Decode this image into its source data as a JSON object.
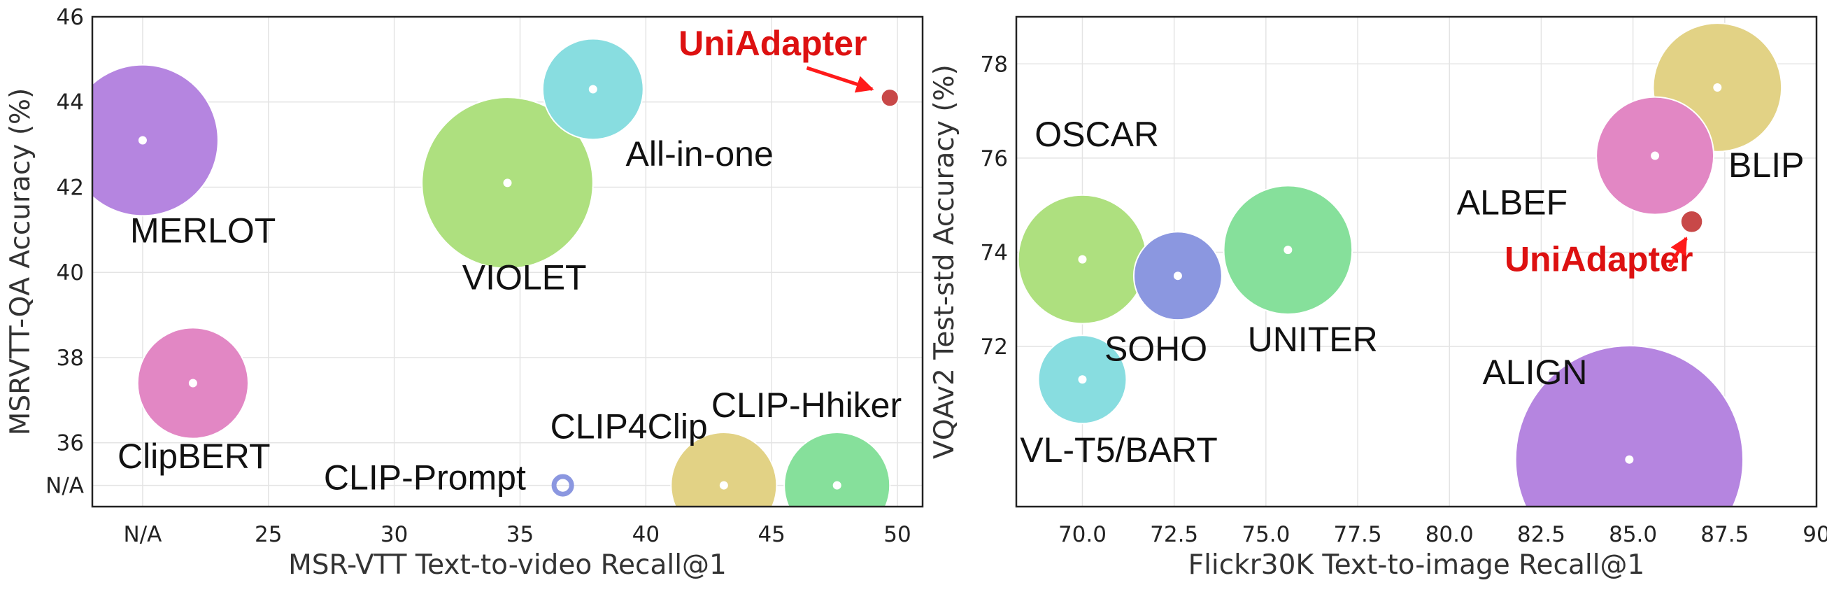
{
  "chart_data": [
    {
      "type": "scatter",
      "xlabel": "MSR-VTT Text-to-video Recall@1",
      "ylabel": "MSRVTT-QA Accuracy (%)",
      "xlim": [
        18,
        51
      ],
      "ylim": [
        34.5,
        46
      ],
      "xticks": [
        {
          "v": 20,
          "label": "N/A"
        },
        {
          "v": 25,
          "label": "25"
        },
        {
          "v": 30,
          "label": "30"
        },
        {
          "v": 35,
          "label": "35"
        },
        {
          "v": 40,
          "label": "40"
        },
        {
          "v": 45,
          "label": "45"
        },
        {
          "v": 50,
          "label": "50"
        }
      ],
      "yticks": [
        {
          "v": 35,
          "label": "N/A"
        },
        {
          "v": 36,
          "label": "36"
        },
        {
          "v": 38,
          "label": "38"
        },
        {
          "v": 40,
          "label": "40"
        },
        {
          "v": 42,
          "label": "42"
        },
        {
          "v": 44,
          "label": "44"
        },
        {
          "v": 46,
          "label": "46"
        }
      ],
      "grid": true,
      "points": [
        {
          "label": "MERLOT",
          "x": 20,
          "y": 43.1,
          "size": 3.0,
          "color": "#b585e0",
          "lx": 19.5,
          "ly": 40.7
        },
        {
          "label": "VIOLET",
          "x": 34.5,
          "y": 42.1,
          "size": 3.4,
          "color": "#aee07f",
          "lx": 32.7,
          "ly": 39.6
        },
        {
          "label": "All-in-one",
          "x": 37.9,
          "y": 44.3,
          "size": 2.0,
          "color": "#88dde0",
          "lx": 39.2,
          "ly": 42.5
        },
        {
          "label": "ClipBERT",
          "x": 22,
          "y": 37.4,
          "size": 2.2,
          "color": "#e287c4",
          "lx": 19.0,
          "ly": 35.4
        },
        {
          "label": "CLIP4Clip",
          "x": 43.1,
          "y": 35.0,
          "size": 2.1,
          "color": "#e2d285",
          "lx": 36.2,
          "ly": 36.1
        },
        {
          "label": "CLIP-Hhiker",
          "x": 47.6,
          "y": 35.0,
          "size": 2.1,
          "color": "#86e09b",
          "lx": 42.6,
          "ly": 36.6
        },
        {
          "label": "CLIP-Prompt",
          "x": 36.7,
          "y": 35.0,
          "size": 0.35,
          "color": "#8b97e0",
          "ring": true,
          "lx": 27.2,
          "ly": 34.9
        },
        {
          "label": "UniAdapter",
          "x": 49.7,
          "y": 44.1,
          "size": 0.35,
          "color": "#c84848",
          "highlight": true,
          "lx": 41.3,
          "ly": 45.1,
          "arrow": [
            46.4,
            44.8,
            49.0,
            44.3
          ]
        }
      ]
    },
    {
      "type": "scatter",
      "xlabel": "Flickr30K Text-to-image Recall@1",
      "ylabel": "VQAv2 Test-std Accuracy (%)",
      "xlim": [
        68.2,
        90
      ],
      "ylim": [
        68.6,
        79
      ],
      "xticks": [
        {
          "v": 70,
          "label": "70.0"
        },
        {
          "v": 72.5,
          "label": "72.5"
        },
        {
          "v": 75,
          "label": "75.0"
        },
        {
          "v": 77.5,
          "label": "77.5"
        },
        {
          "v": 80,
          "label": "80.0"
        },
        {
          "v": 82.5,
          "label": "82.5"
        },
        {
          "v": 85,
          "label": "85.0"
        },
        {
          "v": 87.5,
          "label": "87.5"
        },
        {
          "v": 90,
          "label": "90"
        }
      ],
      "yticks": [
        {
          "v": 72,
          "label": "72"
        },
        {
          "v": 74,
          "label": "74"
        },
        {
          "v": 76,
          "label": "76"
        },
        {
          "v": 78,
          "label": "78"
        }
      ],
      "grid": true,
      "points": [
        {
          "label": "OSCAR",
          "x": 70,
          "y": 73.85,
          "size": 1.75,
          "color": "#aee07f",
          "lx": 68.7,
          "ly": 76.25
        },
        {
          "label": "SOHO",
          "x": 72.6,
          "y": 73.5,
          "size": 1.2,
          "color": "#8b97e0",
          "lx": 70.6,
          "ly": 71.7
        },
        {
          "label": "UNITER",
          "x": 75.6,
          "y": 74.05,
          "size": 1.75,
          "color": "#86e09b",
          "lx": 74.5,
          "ly": 71.9
        },
        {
          "label": "VL-T5/BART",
          "x": 70,
          "y": 71.3,
          "size": 1.2,
          "color": "#88dde0",
          "lx": 68.3,
          "ly": 69.55
        },
        {
          "label": "ALIGN",
          "x": 84.9,
          "y": 69.6,
          "size": 3.1,
          "color": "#b585e0",
          "lx": 80.9,
          "ly": 71.2
        },
        {
          "label": "BLIP",
          "x": 87.3,
          "y": 77.5,
          "size": 1.75,
          "color": "#e2d285",
          "lx": 87.6,
          "ly": 75.6
        },
        {
          "label": "ALBEF",
          "x": 85.6,
          "y": 76.05,
          "size": 1.6,
          "color": "#e287c4",
          "lx": 80.2,
          "ly": 74.8
        },
        {
          "label": "UniAdapter",
          "x": 86.6,
          "y": 74.65,
          "size": 0.3,
          "color": "#c84848",
          "highlight": true,
          "lx": 81.5,
          "ly": 73.6,
          "arrow": [
            86.0,
            73.7,
            86.45,
            74.3
          ]
        }
      ]
    }
  ]
}
